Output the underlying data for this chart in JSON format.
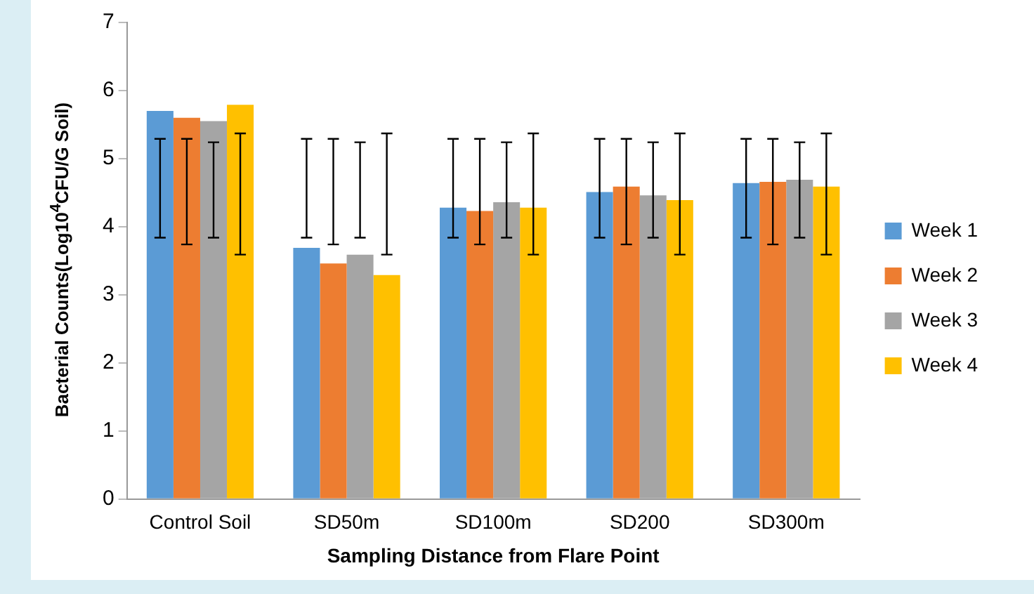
{
  "chart_data": {
    "type": "bar",
    "xlabel": "Sampling Distance from Flare Point",
    "ylabel": "Bacterial Counts(Log10$^{4}$CFU/G Soil)",
    "categories": [
      "Control Soil",
      "SD50m",
      "SD100m",
      "SD200",
      "SD300m"
    ],
    "series": [
      {
        "name": "Week 1",
        "color": "#5b9bd5",
        "values": [
          5.7,
          3.69,
          4.28,
          4.51,
          4.64
        ],
        "errors": [
          [
            3.84,
            5.29
          ],
          [
            3.84,
            5.29
          ],
          [
            3.84,
            5.29
          ],
          [
            3.84,
            5.29
          ],
          [
            3.84,
            5.29
          ]
        ]
      },
      {
        "name": "Week 2",
        "color": "#ed7d31",
        "values": [
          5.6,
          3.46,
          4.23,
          4.59,
          4.66
        ],
        "errors": [
          [
            3.74,
            5.29
          ],
          [
            3.74,
            5.29
          ],
          [
            3.74,
            5.29
          ],
          [
            3.74,
            5.29
          ],
          [
            3.74,
            5.29
          ]
        ]
      },
      {
        "name": "Week 3",
        "color": "#a5a5a5",
        "values": [
          5.55,
          3.59,
          4.36,
          4.46,
          4.69
        ],
        "errors": [
          [
            3.84,
            5.24
          ],
          [
            3.84,
            5.24
          ],
          [
            3.84,
            5.24
          ],
          [
            3.84,
            5.24
          ],
          [
            3.84,
            5.24
          ]
        ]
      },
      {
        "name": "Week 4",
        "color": "#ffc000",
        "values": [
          5.79,
          3.29,
          4.28,
          4.39,
          4.59
        ],
        "errors": [
          [
            3.59,
            5.37
          ],
          [
            3.59,
            5.37
          ],
          [
            3.59,
            5.37
          ],
          [
            3.59,
            5.37
          ],
          [
            3.59,
            5.37
          ]
        ]
      }
    ],
    "ylim": [
      0,
      7
    ],
    "yticks": [
      0,
      1,
      2,
      3,
      4,
      5,
      6,
      7
    ],
    "grid": false,
    "legend": "right"
  }
}
